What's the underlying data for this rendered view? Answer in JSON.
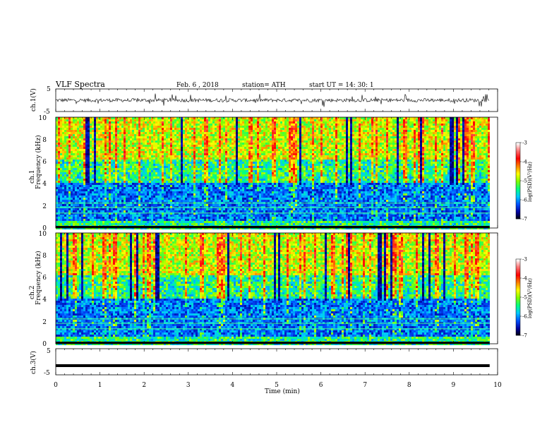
{
  "header": {
    "title": "VLF  Spectra",
    "date": "Feb. 6  , 2018",
    "station": "station= ATH",
    "start": "start  UT  =   14: 30: 1"
  },
  "chart_data": [
    {
      "type": "line",
      "panel": "ch1-waveform",
      "ylabel": "ch.1(V)",
      "ylim": [
        -5,
        5
      ],
      "yticks": [
        "5",
        "-5"
      ],
      "description_level": 0,
      "color": "#000000"
    },
    {
      "type": "heatmap",
      "panel": "ch1-spectrogram",
      "ylabel_line1": "ch.1",
      "ylabel_line2": "Frequency  (kHz)",
      "ylim": [
        0,
        10
      ],
      "yticks": [
        "0",
        "2",
        "4",
        "6",
        "8",
        "10"
      ],
      "colorbar": {
        "label": "log(PSD)(V²/Hz)",
        "range": [
          -7,
          -3
        ],
        "ticks": [
          "-3",
          "-4",
          "-5",
          "-6",
          "-7"
        ],
        "colors": [
          "#000000",
          "#0000a0",
          "#0050ff",
          "#00c8ff",
          "#00ff80",
          "#80ff00",
          "#ffff00",
          "#ff8000",
          "#ff0000",
          "#ff7070",
          "#ffffff"
        ]
      }
    },
    {
      "type": "heatmap",
      "panel": "ch2-spectrogram",
      "ylabel_line1": "ch.2",
      "ylabel_line2": "Frequency  (kHz)",
      "ylim": [
        0,
        10
      ],
      "yticks": [
        "0",
        "2",
        "4",
        "6",
        "8",
        "10"
      ],
      "colorbar": {
        "label": "log(PSD)(V²/Hz)",
        "range": [
          -7,
          -3
        ],
        "ticks": [
          "-3",
          "-4",
          "-5",
          "-6",
          "-7"
        ],
        "colors": [
          "#000000",
          "#0000a0",
          "#0050ff",
          "#00c8ff",
          "#00ff80",
          "#80ff00",
          "#ffff00",
          "#ff8000",
          "#ff0000",
          "#ff7070",
          "#ffffff"
        ]
      }
    },
    {
      "type": "line",
      "panel": "ch3-waveform",
      "ylabel": "ch.3(V)",
      "ylim": [
        -5,
        5
      ],
      "yticks": [
        "5",
        "-5"
      ],
      "level": -1.5,
      "color": "#000000"
    }
  ],
  "xaxis": {
    "label": "Time  (min)",
    "xlim": [
      0,
      10
    ],
    "ticks": [
      "0",
      "1",
      "2",
      "3",
      "4",
      "5",
      "6",
      "7",
      "8",
      "9",
      "10"
    ],
    "data_end": 9.82
  }
}
